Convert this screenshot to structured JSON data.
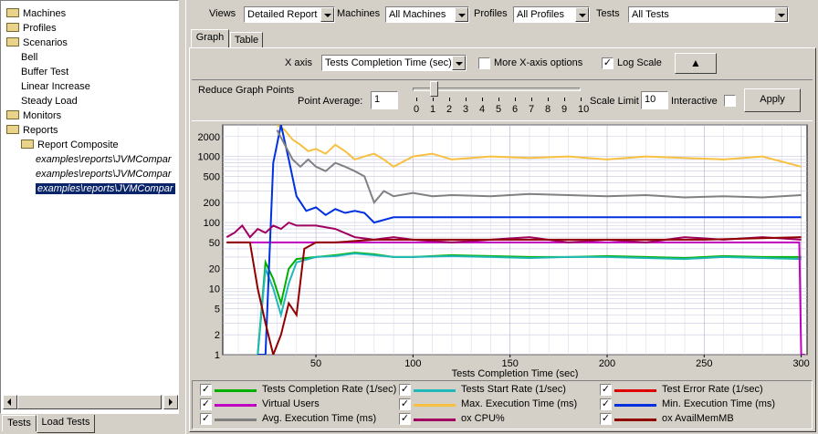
{
  "tree": {
    "items": [
      {
        "label": "Machines",
        "type": "folder",
        "indent": 0
      },
      {
        "label": "Profiles",
        "type": "folder",
        "indent": 0
      },
      {
        "label": "Scenarios",
        "type": "folder-open",
        "indent": 0
      },
      {
        "label": "Bell",
        "type": "leaf",
        "indent": 1
      },
      {
        "label": "Buffer Test",
        "type": "leaf",
        "indent": 1
      },
      {
        "label": "Linear Increase",
        "type": "leaf",
        "indent": 1
      },
      {
        "label": "Steady Load",
        "type": "leaf",
        "indent": 1
      },
      {
        "label": "Monitors",
        "type": "folder",
        "indent": 0
      },
      {
        "label": "Reports",
        "type": "folder-open",
        "indent": 0
      },
      {
        "label": "Report Composite",
        "type": "folder-open",
        "indent": 1
      },
      {
        "label": "examples\\reports\\JVMCompar",
        "type": "leaf-italic",
        "indent": 2
      },
      {
        "label": "examples\\reports\\JVMCompar",
        "type": "leaf-italic",
        "indent": 2
      },
      {
        "label": "examples\\reports\\JVMCompar",
        "type": "leaf-italic-selected",
        "indent": 2
      }
    ]
  },
  "bottom_tabs": {
    "tests": "Tests",
    "load_tests": "Load Tests"
  },
  "toolbar": {
    "views_label": "Views",
    "views_value": "Detailed Report",
    "machines_label": "Machines",
    "machines_value": "All Machines",
    "profiles_label": "Profiles",
    "profiles_value": "All Profiles",
    "tests_label": "Tests",
    "tests_value": "All Tests"
  },
  "view_tabs": {
    "graph": "Graph",
    "table": "Table"
  },
  "axis_options": {
    "xaxis_label": "X axis",
    "xaxis_value": "Tests Completion Time (sec)",
    "more_label": "More X-axis options",
    "more_checked": false,
    "log_label": "Log Scale",
    "log_checked": true,
    "sort_glyph": "▲"
  },
  "reduce": {
    "group_label": "Reduce Graph Points",
    "point_avg_label": "Point Average:",
    "point_avg_value": "1",
    "slider_ticks": [
      "0",
      "1",
      "2",
      "3",
      "4",
      "5",
      "6",
      "7",
      "8",
      "9",
      "10"
    ],
    "slider_value": 1,
    "scale_limit_label": "Scale Limit",
    "scale_limit_value": "10",
    "interactive_label": "Interactive",
    "interactive_checked": false,
    "apply_label": "Apply"
  },
  "chart_data": {
    "type": "line",
    "xlabel": "Tests Completion Time (sec)",
    "ylabel": "",
    "xlim": [
      2,
      303
    ],
    "ylim": [
      1,
      3000
    ],
    "yscale": "log",
    "x_ticks": [
      "50",
      "100",
      "150",
      "200",
      "250",
      "300"
    ],
    "y_ticks": [
      "1",
      "2",
      "5",
      "10",
      "20",
      "50",
      "100",
      "200",
      "500",
      "1000",
      "2000"
    ],
    "grid": true,
    "legend_position": "bottom",
    "series": [
      {
        "name": "Tests Completion Rate (1/sec)",
        "color": "#00b000",
        "checked": true,
        "x": [
          20,
          24,
          28,
          32,
          36,
          40,
          50,
          60,
          70,
          80,
          90,
          100,
          120,
          140,
          160,
          180,
          200,
          220,
          240,
          260,
          280,
          300
        ],
        "y": [
          1,
          25,
          14,
          6,
          20,
          28,
          30,
          32,
          35,
          33,
          30,
          30,
          32,
          31,
          30,
          30,
          31,
          30,
          29,
          31,
          30,
          30
        ]
      },
      {
        "name": "Tests Start Rate (1/sec)",
        "color": "#20b8b8",
        "checked": true,
        "x": [
          20,
          24,
          28,
          32,
          36,
          40,
          50,
          60,
          70,
          80,
          90,
          100,
          120,
          140,
          160,
          180,
          200,
          220,
          240,
          260,
          280,
          300
        ],
        "y": [
          1,
          20,
          10,
          4,
          12,
          25,
          30,
          31,
          34,
          32,
          30,
          30,
          31,
          30,
          29,
          30,
          30,
          29,
          28,
          30,
          29,
          28
        ]
      },
      {
        "name": "Test Error Rate (1/sec)",
        "color": "#e00000",
        "checked": true,
        "x": [],
        "y": []
      },
      {
        "name": "Virtual Users",
        "color": "#c000c0",
        "checked": true,
        "x": [
          4,
          10,
          20,
          30,
          40,
          50,
          60,
          80,
          100,
          150,
          200,
          250,
          299,
          300,
          302
        ],
        "y": [
          50,
          50,
          50,
          50,
          50,
          50,
          50,
          50,
          50,
          50,
          50,
          50,
          50,
          1,
          1
        ]
      },
      {
        "name": "Max. Execution Time (ms)",
        "color": "#f8c040",
        "checked": true,
        "x": [
          30,
          34,
          38,
          42,
          46,
          50,
          55,
          60,
          65,
          70,
          75,
          80,
          85,
          90,
          100,
          110,
          120,
          140,
          160,
          180,
          200,
          220,
          240,
          260,
          280,
          300
        ],
        "y": [
          3000,
          2500,
          1800,
          1500,
          1200,
          1300,
          1100,
          1500,
          1200,
          900,
          1000,
          1100,
          900,
          700,
          1000,
          1100,
          900,
          1000,
          950,
          1000,
          900,
          1000,
          950,
          900,
          1000,
          700
        ]
      },
      {
        "name": "Min. Execution Time (ms)",
        "color": "#0030e0",
        "checked": true,
        "x": [
          20,
          24,
          28,
          32,
          36,
          40,
          45,
          50,
          55,
          60,
          65,
          70,
          75,
          80,
          90,
          100,
          120,
          150,
          200,
          250,
          300
        ],
        "y": [
          1,
          1,
          800,
          3000,
          900,
          250,
          150,
          170,
          130,
          160,
          140,
          150,
          140,
          100,
          120,
          120,
          120,
          120,
          120,
          120,
          120
        ]
      },
      {
        "name": "Avg. Execution Time (ms)",
        "color": "#808080",
        "checked": true,
        "x": [
          30,
          34,
          38,
          42,
          46,
          50,
          55,
          60,
          65,
          70,
          75,
          80,
          85,
          90,
          100,
          110,
          120,
          140,
          160,
          180,
          200,
          220,
          240,
          260,
          280,
          300
        ],
        "y": [
          2500,
          1500,
          900,
          700,
          900,
          700,
          600,
          800,
          700,
          600,
          500,
          200,
          300,
          250,
          280,
          250,
          260,
          250,
          270,
          260,
          250,
          260,
          240,
          250,
          240,
          260
        ]
      },
      {
        "name": "ox CPU%",
        "color": "#a00060",
        "checked": true,
        "x": [
          4,
          8,
          12,
          16,
          20,
          24,
          28,
          32,
          36,
          40,
          50,
          60,
          70,
          80,
          90,
          100,
          120,
          140,
          160,
          180,
          200,
          220,
          240,
          260,
          280,
          300
        ],
        "y": [
          60,
          70,
          90,
          60,
          80,
          70,
          90,
          80,
          100,
          90,
          90,
          80,
          60,
          55,
          60,
          55,
          50,
          55,
          60,
          50,
          55,
          50,
          60,
          55,
          60,
          55
        ]
      },
      {
        "name": "ox AvailMemMB",
        "color": "#900000",
        "checked": true,
        "x": [
          4,
          10,
          16,
          20,
          24,
          28,
          32,
          36,
          40,
          44,
          50,
          60,
          80,
          100,
          150,
          200,
          250,
          300
        ],
        "y": [
          50,
          50,
          50,
          10,
          3,
          1,
          2,
          6,
          4,
          40,
          50,
          50,
          55,
          55,
          55,
          55,
          55,
          60
        ]
      }
    ]
  }
}
